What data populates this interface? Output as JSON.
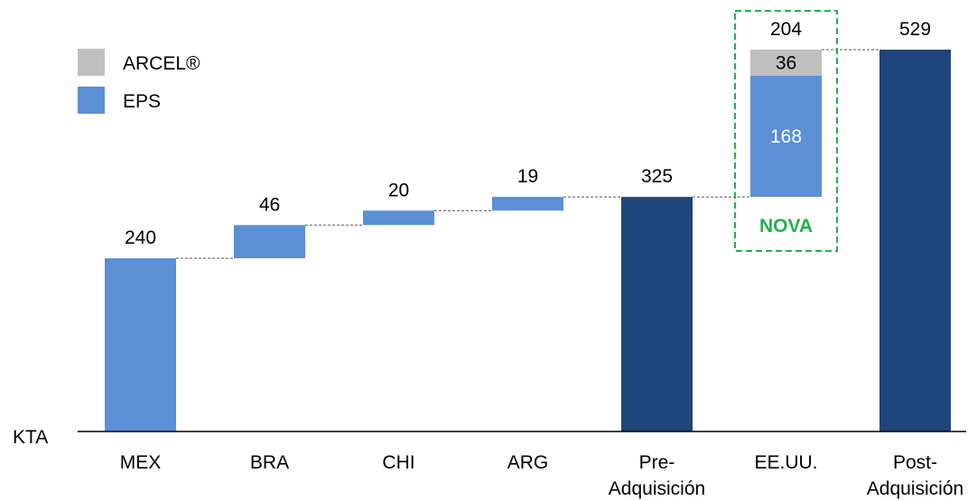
{
  "chart_data": {
    "type": "bar",
    "subtype": "waterfall",
    "y_axis_label": "KTA",
    "categories": [
      {
        "label": [
          "MEX"
        ],
        "value": 240
      },
      {
        "label": [
          "BRA"
        ],
        "value": 46
      },
      {
        "label": [
          "CHI"
        ],
        "value": 20
      },
      {
        "label": [
          "ARG"
        ],
        "value": 19
      },
      {
        "label": [
          "Pre-",
          "Adquisición"
        ],
        "value": 325
      },
      {
        "label": [
          "EE.UU."
        ],
        "value": 204
      },
      {
        "label": [
          "Post-",
          "Adquisición"
        ],
        "value": 529
      }
    ],
    "series": [
      {
        "name": "ARCEL®",
        "color": "#bfbfbf",
        "values": [
          0,
          0,
          0,
          0,
          0,
          36,
          0
        ]
      },
      {
        "name": "EPS",
        "color": "#5b8fd6",
        "values": [
          240,
          46,
          20,
          19,
          0,
          168,
          0
        ]
      }
    ],
    "totals": {
      "color": "#1f467a",
      "values": [
        null,
        null,
        null,
        null,
        325,
        null,
        529
      ]
    },
    "cumulative_base": [
      0,
      240,
      286,
      306,
      0,
      325,
      0
    ],
    "highlight": {
      "label": "NOVA",
      "color": "#22b14c",
      "category_index": 5
    },
    "ylim": [
      0,
      529
    ],
    "legend_position": "top-left"
  }
}
